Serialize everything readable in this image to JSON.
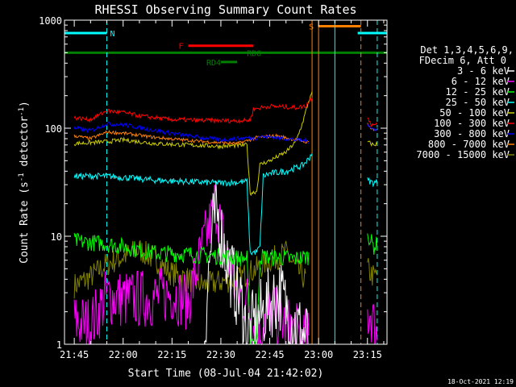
{
  "chart_data": {
    "type": "line",
    "title": "RHESSI Observing Summary Count Rates",
    "xlabel": "Start Time (08-Jul-04 21:42:02)",
    "ylabel_main": "Count Rate (s",
    "ylabel_sup1": "-1",
    "ylabel_mid": " detector",
    "ylabel_sup2": "-1",
    "ylabel_end": ")",
    "yscale": "log",
    "ylim": [
      1,
      1000
    ],
    "xlim_minutes": [
      -3,
      96
    ],
    "xtick_minutes": [
      0,
      15,
      30,
      45,
      60,
      75,
      90
    ],
    "xtick_labels": [
      "21:45",
      "22:00",
      "22:15",
      "22:30",
      "22:45",
      "23:00",
      "23:15"
    ],
    "ytick_values": [
      1,
      10,
      100,
      1000
    ],
    "ytick_labels": [
      "1",
      "10",
      "100",
      "1000"
    ],
    "footer_date": "18-Oct-2021 12:19",
    "legend_header": [
      "Det 1,3,4,5,6,9,",
      "FDecim 6, Att 0"
    ],
    "series": [
      {
        "name": "3 - 6 keV",
        "color": "#ffffff"
      },
      {
        "name": "6 - 12 keV",
        "color": "#ff00ff"
      },
      {
        "name": "12 - 25 keV",
        "color": "#00ff00"
      },
      {
        "name": "25 - 50 keV",
        "color": "#00ffff"
      },
      {
        "name": "50 - 100 keV",
        "color": "#cccc00"
      },
      {
        "name": "100 - 300 keV",
        "color": "#ff0000"
      },
      {
        "name": "300 - 800 keV",
        "color": "#0000ff"
      },
      {
        "name": "800 - 7000 keV",
        "color": "#ff8000"
      },
      {
        "name": "7000 - 15000 keV",
        "color": "#808000"
      }
    ],
    "curves": {
      "red": [
        [
          0,
          125
        ],
        [
          5,
          120
        ],
        [
          10,
          145
        ],
        [
          15,
          140
        ],
        [
          20,
          130
        ],
        [
          30,
          120
        ],
        [
          40,
          118
        ],
        [
          50,
          117
        ],
        [
          54,
          119
        ],
        [
          55,
          150
        ],
        [
          60,
          160
        ],
        [
          68,
          155
        ],
        [
          71,
          160
        ],
        [
          72,
          175
        ],
        [
          73,
          195
        ]
      ],
      "blue": [
        [
          0,
          100
        ],
        [
          5,
          95
        ],
        [
          10,
          110
        ],
        [
          15,
          108
        ],
        [
          25,
          95
        ],
        [
          35,
          85
        ],
        [
          45,
          78
        ],
        [
          54,
          82
        ],
        [
          55,
          80
        ],
        [
          57,
          84
        ],
        [
          62,
          82
        ],
        [
          68,
          78
        ],
        [
          72,
          76
        ]
      ],
      "orange": [
        [
          0,
          85
        ],
        [
          5,
          80
        ],
        [
          10,
          92
        ],
        [
          15,
          90
        ],
        [
          25,
          82
        ],
        [
          40,
          75
        ],
        [
          50,
          72
        ],
        [
          54,
          78
        ],
        [
          56,
          82
        ],
        [
          62,
          85
        ],
        [
          68,
          78
        ],
        [
          72,
          74
        ]
      ],
      "yellow": [
        [
          0,
          72
        ],
        [
          10,
          75
        ],
        [
          15,
          78
        ],
        [
          25,
          72
        ],
        [
          35,
          70
        ],
        [
          45,
          68
        ],
        [
          53,
          70
        ],
        [
          54,
          25
        ],
        [
          56,
          26
        ],
        [
          57,
          46
        ],
        [
          60,
          50
        ],
        [
          65,
          60
        ],
        [
          68,
          75
        ],
        [
          70,
          110
        ],
        [
          72,
          180
        ],
        [
          73,
          210
        ]
      ],
      "cyan": [
        [
          0,
          36
        ],
        [
          10,
          36
        ],
        [
          15,
          35
        ],
        [
          25,
          33
        ],
        [
          35,
          32
        ],
        [
          45,
          31
        ],
        [
          53,
          32
        ],
        [
          54,
          7
        ],
        [
          56,
          7.2
        ],
        [
          57,
          8
        ],
        [
          58,
          36
        ],
        [
          60,
          38
        ],
        [
          65,
          40
        ],
        [
          70,
          45
        ],
        [
          72,
          52
        ],
        [
          73,
          60
        ]
      ],
      "green": [
        [
          0,
          9
        ],
        [
          10,
          8.5
        ],
        [
          15,
          8
        ],
        [
          25,
          7
        ],
        [
          35,
          6.8
        ],
        [
          45,
          6.5
        ],
        [
          53,
          6.2
        ],
        [
          54,
          1.1
        ],
        [
          56,
          1.1
        ],
        [
          57,
          6.5
        ],
        [
          68,
          6.2
        ],
        [
          72,
          6.5
        ]
      ],
      "olive": [
        [
          0,
          3.5
        ],
        [
          5,
          4.2
        ],
        [
          10,
          5.5
        ],
        [
          15,
          6.5
        ],
        [
          20,
          7.5
        ],
        [
          25,
          6
        ],
        [
          30,
          4.5
        ],
        [
          35,
          4
        ],
        [
          40,
          3.5
        ],
        [
          45,
          3.8
        ],
        [
          50,
          4
        ],
        [
          53,
          4.5
        ],
        [
          56,
          5
        ],
        [
          60,
          6
        ],
        [
          65,
          7
        ],
        [
          68,
          5
        ],
        [
          71,
          4
        ]
      ],
      "magenta": [
        [
          0,
          1.6
        ],
        [
          5,
          1.5
        ],
        [
          10,
          2.8
        ],
        [
          15,
          2.6
        ],
        [
          25,
          2.7
        ],
        [
          30,
          3
        ],
        [
          35,
          2.5
        ],
        [
          40,
          9
        ],
        [
          42,
          14
        ],
        [
          43,
          20
        ],
        [
          44,
          18
        ],
        [
          45,
          12
        ],
        [
          47,
          6
        ],
        [
          50,
          3
        ],
        [
          53,
          2.5
        ],
        [
          56,
          1.2
        ],
        [
          60,
          2
        ],
        [
          65,
          1.5
        ],
        [
          68,
          1.3
        ],
        [
          72,
          1.1
        ]
      ],
      "white": [
        [
          40,
          1.1
        ],
        [
          41,
          4
        ],
        [
          42,
          8
        ],
        [
          43,
          14
        ],
        [
          44,
          16
        ],
        [
          45,
          11
        ],
        [
          47,
          6
        ],
        [
          50,
          3
        ],
        [
          52,
          2
        ],
        [
          53,
          1.2
        ],
        [
          57,
          1.8
        ],
        [
          60,
          2.4
        ],
        [
          63,
          3
        ],
        [
          65,
          2.2
        ],
        [
          68,
          1.5
        ],
        [
          72,
          1.1
        ]
      ]
    },
    "tail_curves": {
      "red": [
        [
          90,
          130
        ],
        [
          91,
          110
        ],
        [
          92,
          105
        ],
        [
          93,
          115
        ]
      ],
      "blue": [
        [
          90,
          110
        ],
        [
          91,
          100
        ],
        [
          92,
          98
        ],
        [
          93,
          100
        ]
      ],
      "orange": [
        [
          90,
          112
        ],
        [
          91,
          100
        ],
        [
          92,
          96
        ],
        [
          93,
          98
        ]
      ],
      "yellow": [
        [
          90,
          75
        ],
        [
          91,
          72
        ],
        [
          92,
          70
        ],
        [
          93,
          72
        ]
      ],
      "cyan": [
        [
          90,
          33
        ],
        [
          91,
          32
        ],
        [
          92,
          31
        ],
        [
          93,
          32
        ]
      ],
      "green": [
        [
          90,
          11
        ],
        [
          91,
          9
        ],
        [
          92,
          8
        ],
        [
          93,
          8.5
        ]
      ],
      "olive": [
        [
          90,
          5
        ],
        [
          91,
          4.5
        ],
        [
          92,
          4.2
        ],
        [
          93,
          4.5
        ]
      ],
      "magenta": [
        [
          90,
          1.8
        ],
        [
          91,
          2
        ],
        [
          92,
          1.5
        ],
        [
          93,
          1.2
        ]
      ]
    },
    "vertical_lines": [
      {
        "minute": 10,
        "color": "#00ffff",
        "style": "dashed"
      },
      {
        "minute": 73,
        "color": "#ff8000",
        "style": "solid"
      },
      {
        "minute": 75,
        "color": "#ff8000",
        "style": "solid"
      },
      {
        "minute": 80,
        "color": "#00ffff",
        "style": "solid"
      },
      {
        "minute": 88,
        "color": "#ff8000",
        "style": "dashed"
      },
      {
        "minute": 93,
        "color": "#00ffff",
        "style": "dashed"
      }
    ],
    "flag_bars": [
      {
        "label": "N",
        "color": "#00ffff",
        "segments": [
          [
            -3,
            10
          ],
          [
            87,
            96
          ]
        ],
        "level": 760
      },
      {
        "label": "S",
        "color": "#ff8000",
        "segments": [
          [
            75,
            88
          ]
        ],
        "level": 880
      },
      {
        "label": "F",
        "color": "#ff0000",
        "segments": [
          [
            35,
            55
          ]
        ],
        "level": 580
      },
      {
        "label": "RDO",
        "color": "#008000",
        "segments": [
          [
            -3,
            96
          ]
        ],
        "level": 500
      },
      {
        "label": "RD4",
        "color": "#008000",
        "segments": [
          [
            45,
            50
          ]
        ],
        "level": 410
      }
    ]
  }
}
